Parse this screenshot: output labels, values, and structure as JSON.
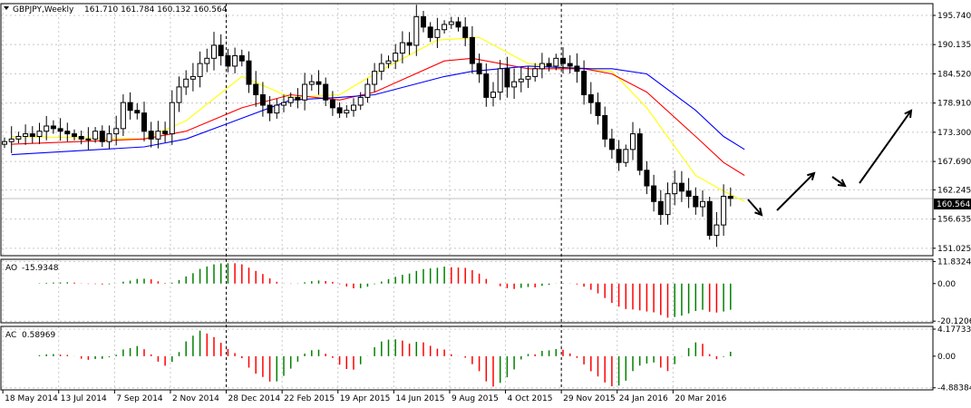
{
  "header": {
    "symbol": "GBPJPY,Weekly",
    "ohlc": "161.710 161.784 160.132 160.564"
  },
  "current_price_label": "160.564",
  "indicators": {
    "ao": {
      "title": "AO",
      "value": "-15.9348"
    },
    "ac": {
      "title": "AC",
      "value": "0.58969"
    }
  },
  "colors": {
    "grid": "#c8c8c8",
    "candle": "#000000",
    "ma_fast": "#ffff00",
    "ma_mid": "#ff0000",
    "ma_slow": "#0000ff",
    "bar_up": "#008000",
    "bar_down": "#ff0000",
    "current_price_bg": "#000000",
    "current_price_fg": "#ffffff"
  },
  "chart_data": [
    {
      "type": "candlestick",
      "title": "GBPJPY,Weekly",
      "x_tick_labels": [
        "18 May 2014",
        "13 Jul 2014",
        "7 Sep 2014",
        "2 Nov 2014",
        "28 Dec 2014",
        "22 Feb 2015",
        "19 Apr 2015",
        "14 Jun 2015",
        "9 Aug 2015",
        "4 Oct 2015",
        "29 Nov 2015",
        "24 Jan 2016",
        "20 Mar 2016"
      ],
      "y_tick_labels": [
        "195.740",
        "190.135",
        "184.520",
        "178.910",
        "173.300",
        "167.690",
        "162.245",
        "156.635",
        "151.025"
      ],
      "ylim": [
        149.6,
        198.0
      ],
      "vertical_separators": [
        "28 Dec 2014",
        "29 Nov 2015"
      ],
      "weekly_close_approx": [
        171.5,
        172.0,
        172.5,
        173.0,
        172.5,
        173.5,
        174.5,
        174.0,
        173.5,
        173.0,
        172.5,
        172.0,
        172.0,
        173.5,
        171.5,
        173.0,
        174.0,
        179.0,
        177.5,
        177.0,
        173.5,
        172.0,
        173.5,
        173.0,
        179.0,
        182.0,
        183.5,
        184.0,
        186.5,
        187.5,
        190.0,
        188.0,
        186.0,
        188.0,
        187.0,
        182.5,
        180.5,
        178.5,
        177.0,
        178.5,
        179.0,
        180.0,
        179.5,
        182.5,
        183.0,
        182.5,
        179.5,
        178.0,
        177.0,
        177.5,
        178.5,
        180.0,
        182.5,
        185.0,
        186.5,
        187.0,
        188.5,
        190.5,
        190.0,
        195.5,
        193.5,
        191.5,
        193.0,
        194.0,
        194.5,
        193.5,
        191.5,
        186.5,
        184.5,
        180.0,
        181.0,
        185.5,
        182.0,
        183.0,
        183.5,
        184.0,
        185.5,
        186.5,
        186.0,
        187.5,
        186.5,
        186.0,
        185.0,
        180.5,
        179.0,
        176.5,
        172.0,
        170.0,
        167.5,
        170.0,
        173.0,
        166.0,
        163.0,
        160.0,
        157.5,
        161.5,
        163.5,
        162.0,
        161.0,
        159.0,
        160.0,
        153.5,
        155.5,
        161.0,
        160.6
      ],
      "series": [
        {
          "name": "",
          "color": "#ffff00",
          "points": [
            [
              1,
              172.5
            ],
            [
              20,
              172.0
            ],
            [
              26,
              175.5
            ],
            [
              34,
              184.0
            ],
            [
              41,
              180.0
            ],
            [
              48,
              180.5
            ],
            [
              53,
              184.5
            ],
            [
              62,
              191.0
            ],
            [
              68,
              191.5
            ],
            [
              75,
              186.5
            ],
            [
              83,
              185.5
            ],
            [
              87,
              185.0
            ],
            [
              92,
              178.0
            ],
            [
              99,
              165.0
            ],
            [
              103,
              162.0
            ],
            [
              106,
              160.0
            ]
          ]
        },
        {
          "name": "",
          "color": "#ff0000",
          "points": [
            [
              1,
              171.0
            ],
            [
              20,
              172.0
            ],
            [
              26,
              173.5
            ],
            [
              34,
              178.0
            ],
            [
              41,
              180.5
            ],
            [
              48,
              179.5
            ],
            [
              53,
              181.0
            ],
            [
              63,
              187.0
            ],
            [
              67,
              187.5
            ],
            [
              75,
              185.5
            ],
            [
              83,
              185.5
            ],
            [
              87,
              184.5
            ],
            [
              92,
              181.0
            ],
            [
              99,
              172.5
            ],
            [
              103,
              167.5
            ],
            [
              106,
              165.0
            ]
          ]
        },
        {
          "name": "",
          "color": "#0000ff",
          "points": [
            [
              1,
              169.0
            ],
            [
              20,
              170.5
            ],
            [
              26,
              172.0
            ],
            [
              34,
              176.0
            ],
            [
              41,
              179.5
            ],
            [
              48,
              180.0
            ],
            [
              53,
              180.5
            ],
            [
              63,
              184.0
            ],
            [
              67,
              185.0
            ],
            [
              75,
              186.0
            ],
            [
              84,
              185.5
            ],
            [
              87,
              185.5
            ],
            [
              92,
              184.5
            ],
            [
              99,
              177.5
            ],
            [
              103,
              172.5
            ],
            [
              106,
              170.0
            ]
          ]
        }
      ],
      "annotations": [
        "down arrow",
        "up arrow",
        "down arrow",
        "up arrow"
      ]
    },
    {
      "type": "bar",
      "title": "AO -15.9348",
      "y_tick_labels": [
        "11.8324",
        "0.00",
        "-20.1206"
      ],
      "ylim": [
        -21.0,
        13.0
      ]
    },
    {
      "type": "bar",
      "title": "AC 0.58969",
      "y_tick_labels": [
        "4.17733",
        "0.00",
        "-4.88384"
      ],
      "ylim": [
        -5.2,
        4.6
      ]
    }
  ]
}
